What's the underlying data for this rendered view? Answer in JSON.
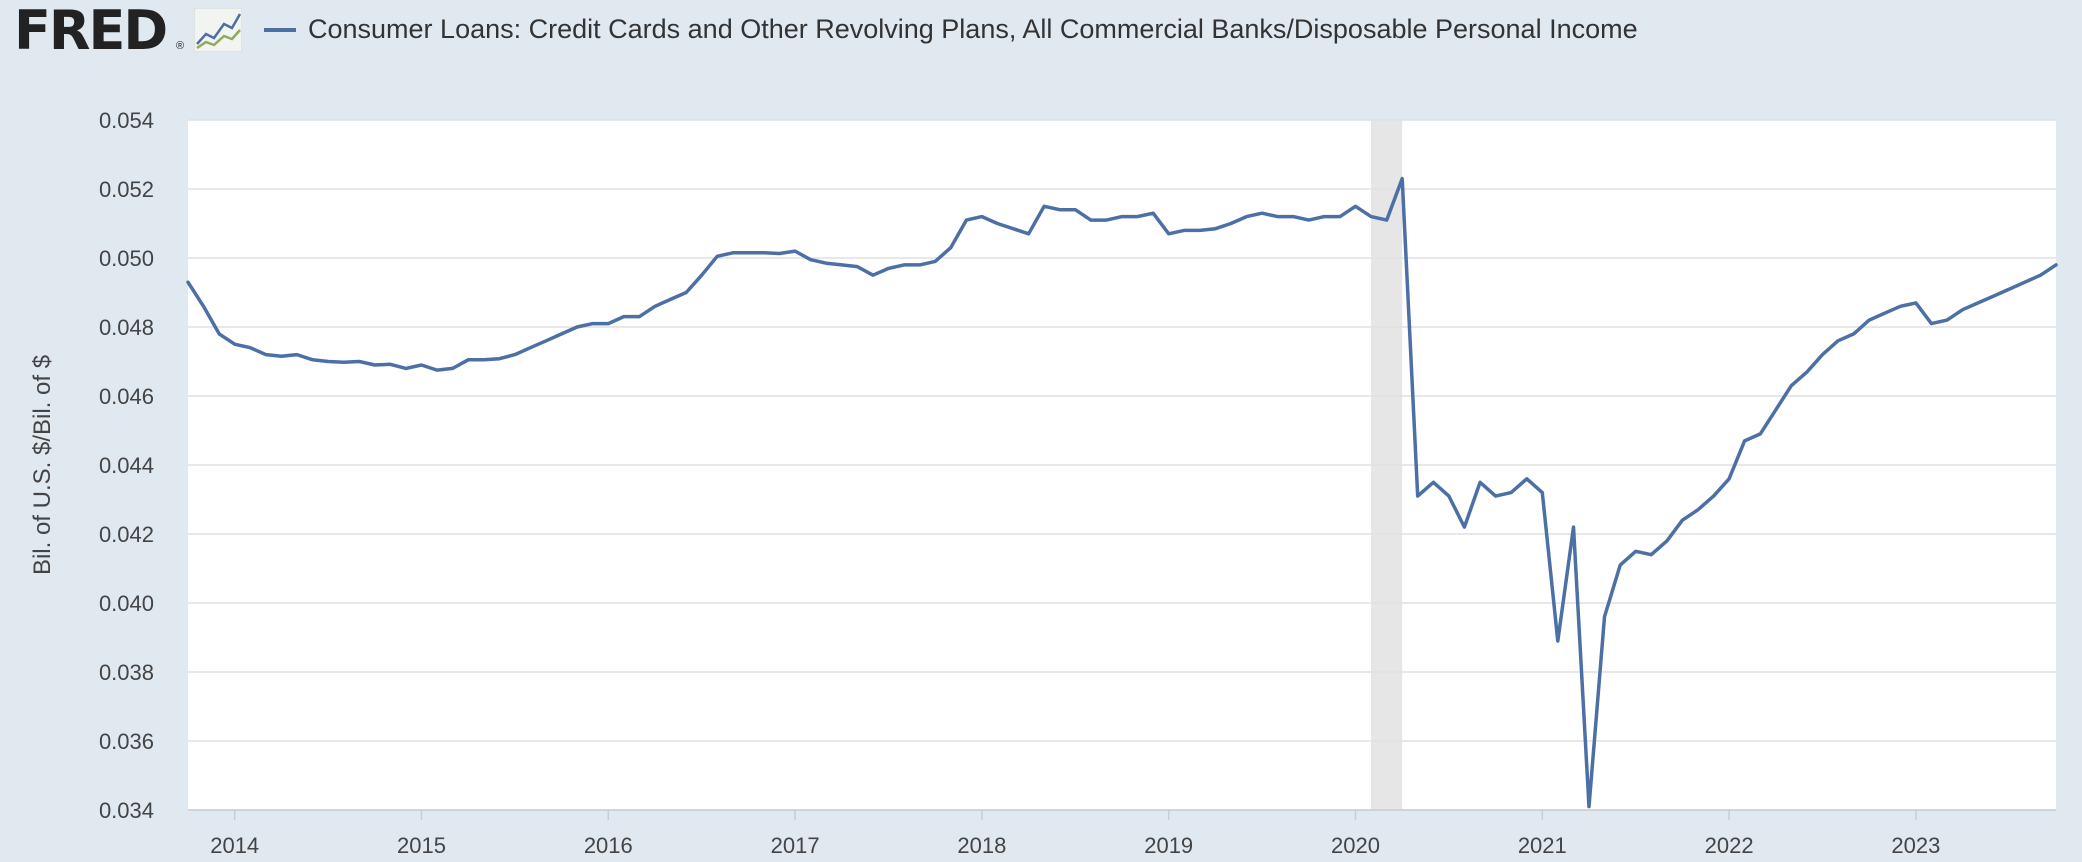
{
  "header": {
    "logo_text": "FRED",
    "logo_reg": "®",
    "series_title": "Consumer Loans: Credit Cards and Other Revolving Plans, All Commercial Banks/Disposable Personal Income"
  },
  "colors": {
    "background": "#e1e9f0",
    "plot_background": "#ffffff",
    "series_line": "#4c6fa5",
    "recession_shade": "#e6e6e6",
    "gridline": "#e0e0e0"
  },
  "icons": {
    "logo_graph": "line-graph-icon"
  },
  "chart_data": {
    "type": "line",
    "title": "",
    "xlabel": "",
    "ylabel": "Bil. of U.S. $/Bil. of $",
    "xlim": [
      2013.75,
      2023.75
    ],
    "ylim": [
      0.034,
      0.054
    ],
    "grid": true,
    "legend": "top-left",
    "x_ticks": [
      2014,
      2015,
      2016,
      2017,
      2018,
      2019,
      2020,
      2021,
      2022,
      2023
    ],
    "x_tick_labels": [
      "2014",
      "2015",
      "2016",
      "2017",
      "2018",
      "2019",
      "2020",
      "2021",
      "2022",
      "2023"
    ],
    "y_ticks": [
      0.034,
      0.036,
      0.038,
      0.04,
      0.042,
      0.044,
      0.046,
      0.048,
      0.05,
      0.052,
      0.054
    ],
    "y_tick_labels": [
      "0.034",
      "0.036",
      "0.038",
      "0.040",
      "0.042",
      "0.044",
      "0.046",
      "0.048",
      "0.050",
      "0.052",
      "0.054"
    ],
    "recessions": [
      {
        "start": 2020.083,
        "end": 2020.25
      }
    ],
    "series": [
      {
        "name": "Consumer Loans: Credit Cards and Other Revolving Plans, All Commercial Banks/Disposable Personal Income",
        "x": [
          2013.75,
          2013.833,
          2013.917,
          2014.0,
          2014.083,
          2014.167,
          2014.25,
          2014.333,
          2014.417,
          2014.5,
          2014.583,
          2014.667,
          2014.75,
          2014.833,
          2014.917,
          2015.0,
          2015.083,
          2015.167,
          2015.25,
          2015.333,
          2015.417,
          2015.5,
          2015.583,
          2015.667,
          2015.75,
          2015.833,
          2015.917,
          2016.0,
          2016.083,
          2016.167,
          2016.25,
          2016.333,
          2016.417,
          2016.5,
          2016.583,
          2016.667,
          2016.75,
          2016.833,
          2016.917,
          2017.0,
          2017.083,
          2017.167,
          2017.25,
          2017.333,
          2017.417,
          2017.5,
          2017.583,
          2017.667,
          2017.75,
          2017.833,
          2017.917,
          2018.0,
          2018.083,
          2018.167,
          2018.25,
          2018.333,
          2018.417,
          2018.5,
          2018.583,
          2018.667,
          2018.75,
          2018.833,
          2018.917,
          2019.0,
          2019.083,
          2019.167,
          2019.25,
          2019.333,
          2019.417,
          2019.5,
          2019.583,
          2019.667,
          2019.75,
          2019.833,
          2019.917,
          2020.0,
          2020.083,
          2020.167,
          2020.25,
          2020.333,
          2020.417,
          2020.5,
          2020.583,
          2020.667,
          2020.75,
          2020.833,
          2020.917,
          2021.0,
          2021.083,
          2021.167,
          2021.25,
          2021.333,
          2021.417,
          2021.5,
          2021.583,
          2021.667,
          2021.75,
          2021.833,
          2021.917,
          2022.0,
          2022.083,
          2022.167,
          2022.25,
          2022.333,
          2022.417,
          2022.5,
          2022.583,
          2022.667,
          2022.75,
          2022.833,
          2022.917,
          2023.0,
          2023.083,
          2023.167,
          2023.25,
          2023.333,
          2023.417,
          2023.5,
          2023.583,
          2023.667,
          2023.75
        ],
        "values": [
          0.0493,
          0.0486,
          0.0478,
          0.0475,
          0.0474,
          0.0472,
          0.04715,
          0.0472,
          0.04705,
          0.047,
          0.04698,
          0.047,
          0.0469,
          0.04692,
          0.0468,
          0.0469,
          0.04675,
          0.0468,
          0.04705,
          0.04705,
          0.04708,
          0.0472,
          0.0474,
          0.0476,
          0.0478,
          0.048,
          0.0481,
          0.0481,
          0.0483,
          0.0483,
          0.0486,
          0.0488,
          0.049,
          0.0495,
          0.05005,
          0.05015,
          0.05015,
          0.05015,
          0.05013,
          0.0502,
          0.04995,
          0.04985,
          0.0498,
          0.04975,
          0.0495,
          0.0497,
          0.0498,
          0.0498,
          0.0499,
          0.0503,
          0.0511,
          0.0512,
          0.051,
          0.05085,
          0.0507,
          0.0515,
          0.0514,
          0.0514,
          0.0511,
          0.0511,
          0.0512,
          0.0512,
          0.0513,
          0.0507,
          0.0508,
          0.0508,
          0.05085,
          0.051,
          0.0512,
          0.0513,
          0.0512,
          0.0512,
          0.0511,
          0.0512,
          0.0512,
          0.0515,
          0.0512,
          0.0511,
          0.0523,
          0.0431,
          0.0435,
          0.0431,
          0.0422,
          0.0435,
          0.0431,
          0.0432,
          0.0436,
          0.0432,
          0.0389,
          0.0422,
          0.0341,
          0.0396,
          0.0411,
          0.0415,
          0.0414,
          0.0418,
          0.0424,
          0.0427,
          0.0431,
          0.0436,
          0.0447,
          0.0449,
          0.0456,
          0.0463,
          0.0467,
          0.0472,
          0.0476,
          0.0478,
          0.0482,
          0.0484,
          0.0486,
          0.0487,
          0.0481,
          0.0482,
          0.0485,
          0.0487,
          0.0489,
          0.0491,
          0.0493,
          0.0495,
          0.0498
        ]
      }
    ]
  }
}
